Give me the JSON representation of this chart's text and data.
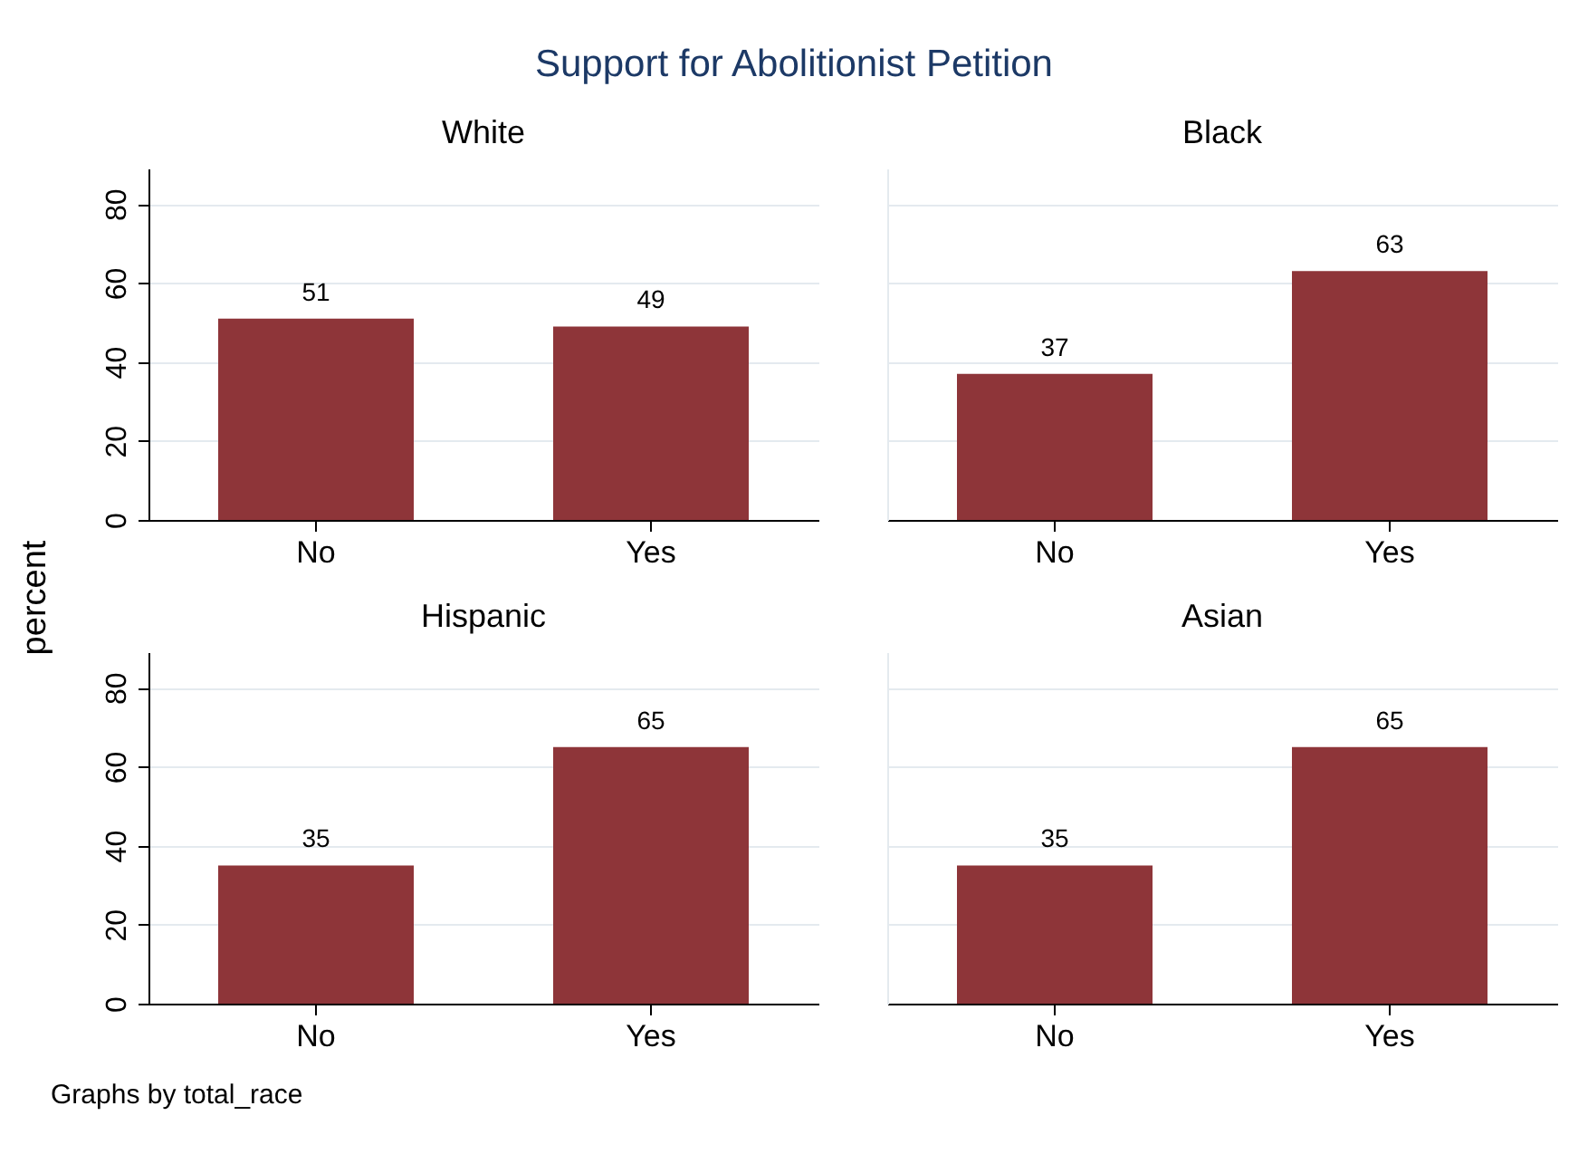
{
  "chart_data": [
    {
      "type": "bar",
      "title": "Support for Abolitionist Petition",
      "subtitle": "White",
      "ylabel": "percent",
      "categories": [
        "No",
        "Yes"
      ],
      "values": [
        51,
        49
      ],
      "color": "#8e3539",
      "ylim": [
        0,
        89
      ],
      "yticks": [
        0,
        20,
        40,
        60,
        80
      ],
      "grid": "y",
      "data_labels": true
    },
    {
      "type": "bar",
      "title": "Black",
      "categories": [
        "No",
        "Yes"
      ],
      "values": [
        37,
        63
      ],
      "color": "#8e3539",
      "ylim": [
        0,
        89
      ],
      "yticks": [
        0,
        20,
        40,
        60,
        80
      ],
      "grid": "y",
      "data_labels": true,
      "tick_labels": "x"
    },
    {
      "type": "bar",
      "title": "Hispanic",
      "categories": [
        "No",
        "Yes"
      ],
      "values": [
        35,
        65
      ],
      "color": "#8e3539",
      "ylim": [
        0,
        89
      ],
      "yticks": [
        0,
        20,
        40,
        60,
        80
      ],
      "grid": "y",
      "data_labels": true
    },
    {
      "type": "bar",
      "title": "Asian",
      "categories": [
        "No",
        "Yes"
      ],
      "values": [
        35,
        65
      ],
      "color": "#8e3539",
      "ylim": [
        0,
        89
      ],
      "yticks": [
        0,
        20,
        40,
        60,
        80
      ],
      "grid": "y",
      "data_labels": true,
      "tick_labels": "x",
      "annotations": [
        "Graphs by total_race"
      ]
    }
  ]
}
